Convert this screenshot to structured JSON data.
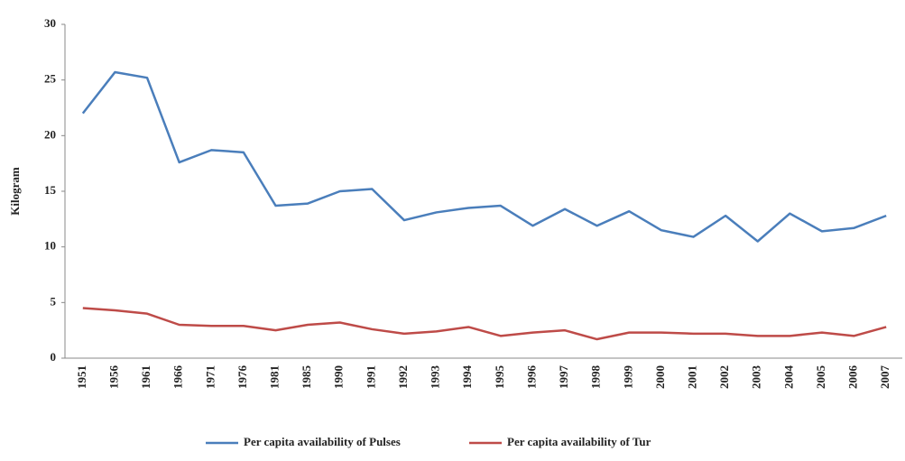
{
  "chart_data": {
    "type": "line",
    "ylabel": "Kilogram",
    "categories": [
      "1951",
      "1956",
      "1961",
      "1966",
      "1971",
      "1976",
      "1981",
      "1985",
      "1990",
      "1991",
      "1992",
      "1993",
      "1994",
      "1995",
      "1996",
      "1997",
      "1998",
      "1999",
      "2000",
      "2001",
      "2002",
      "2003",
      "2004",
      "2005",
      "2006",
      "2007"
    ],
    "series": [
      {
        "name": "Per capita availability of Pulses",
        "color": "#4a7ebb",
        "values": [
          22.0,
          25.7,
          25.2,
          17.6,
          18.7,
          18.5,
          13.7,
          13.9,
          15.0,
          15.2,
          12.4,
          13.1,
          13.5,
          13.7,
          11.9,
          13.4,
          11.9,
          13.2,
          11.5,
          10.9,
          12.8,
          10.5,
          13.0,
          11.4,
          11.7,
          12.8
        ]
      },
      {
        "name": "Per capita availability of Tur",
        "color": "#be4b48",
        "values": [
          4.5,
          4.3,
          4.0,
          3.0,
          2.9,
          2.9,
          2.5,
          3.0,
          3.2,
          2.6,
          2.2,
          2.4,
          2.8,
          2.0,
          2.3,
          2.5,
          1.7,
          2.3,
          2.3,
          2.2,
          2.2,
          2.0,
          2.0,
          2.3,
          2.0,
          2.8
        ]
      }
    ],
    "ylim": [
      0,
      30
    ],
    "yticks": [
      0,
      5,
      10,
      15,
      20,
      25,
      30
    ],
    "grid": false,
    "legend": "bottom"
  }
}
